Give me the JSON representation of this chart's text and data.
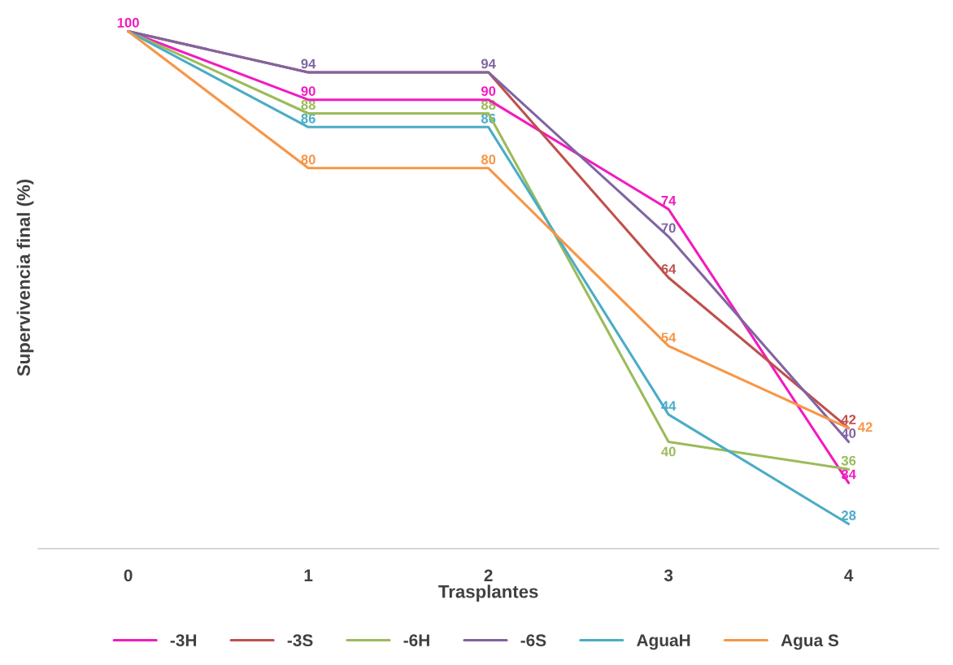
{
  "chart_data": {
    "type": "line",
    "xlabel": "Trasplantes",
    "ylabel": "Supervivencia final (%)",
    "categories": [
      "0",
      "1",
      "2",
      "3",
      "4"
    ],
    "legend": "bottom",
    "grid": false,
    "marker": "none",
    "line_style": "solid",
    "tick_labels": "x",
    "series": [
      {
        "name": "-3H",
        "color": "#f21bbf",
        "values": [
          100,
          90,
          90,
          74,
          34
        ],
        "value_labels": [
          "100",
          "90",
          "90",
          "74",
          "34"
        ]
      },
      {
        "name": "-3S",
        "color": "#c0504d",
        "values": [
          100,
          94,
          94,
          64,
          42
        ],
        "value_labels": [
          null,
          null,
          null,
          "64",
          "42"
        ]
      },
      {
        "name": "-6H",
        "color": "#9bbb59",
        "values": [
          100,
          88,
          88,
          40,
          36
        ],
        "value_labels": [
          null,
          "88",
          "88",
          "40",
          "36"
        ]
      },
      {
        "name": "-6S",
        "color": "#8064a2",
        "values": [
          100,
          94,
          94,
          70,
          40
        ],
        "value_labels": [
          null,
          "94",
          "94",
          "70",
          "40"
        ]
      },
      {
        "name": "AguaH",
        "color": "#4bacc6",
        "values": [
          100,
          86,
          86,
          44,
          28
        ],
        "value_labels": [
          null,
          "86",
          "86",
          "44",
          "28"
        ]
      },
      {
        "name": "Agua S",
        "color": "#f79646",
        "values": [
          100,
          80,
          80,
          54,
          42
        ],
        "value_labels": [
          null,
          "80",
          "80",
          "54",
          "42"
        ]
      }
    ]
  }
}
